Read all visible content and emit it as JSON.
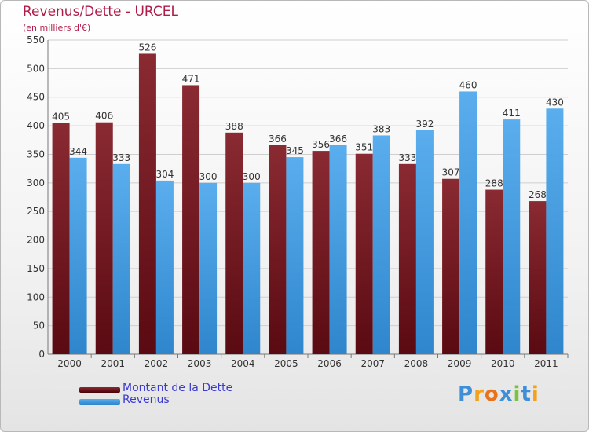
{
  "chart_data": {
    "type": "bar",
    "title": "Revenus/Dette - URCEL",
    "subtitle": "(en milliers d'€)",
    "categories": [
      "2000",
      "2001",
      "2002",
      "2003",
      "2004",
      "2005",
      "2006",
      "2007",
      "2008",
      "2009",
      "2010",
      "2011"
    ],
    "series": [
      {
        "name": "Montant de la Dette",
        "color": "#7a1a22",
        "values": [
          405,
          406,
          526,
          471,
          388,
          366,
          356,
          351,
          333,
          307,
          288,
          268
        ]
      },
      {
        "name": "Revenus",
        "color": "#4aa3e6",
        "values": [
          344,
          333,
          304,
          300,
          300,
          345,
          366,
          383,
          392,
          460,
          411,
          430
        ]
      }
    ],
    "ylim": [
      0,
      550
    ],
    "yticks": [
      0,
      50,
      100,
      150,
      200,
      250,
      300,
      350,
      400,
      450,
      500,
      550
    ],
    "grid": true,
    "legend_position": "bottom-left"
  },
  "logo": {
    "text": "Proxiti",
    "letters": [
      {
        "ch": "P",
        "color": "#3f8fd8"
      },
      {
        "ch": "r",
        "color": "#f2a21c"
      },
      {
        "ch": "o",
        "color": "#e8731c"
      },
      {
        "ch": "x",
        "color": "#3f8fd8"
      },
      {
        "ch": "i",
        "color": "#7cc142"
      },
      {
        "ch": "t",
        "color": "#3f8fd8"
      },
      {
        "ch": "i",
        "color": "#f2a21c"
      }
    ]
  }
}
